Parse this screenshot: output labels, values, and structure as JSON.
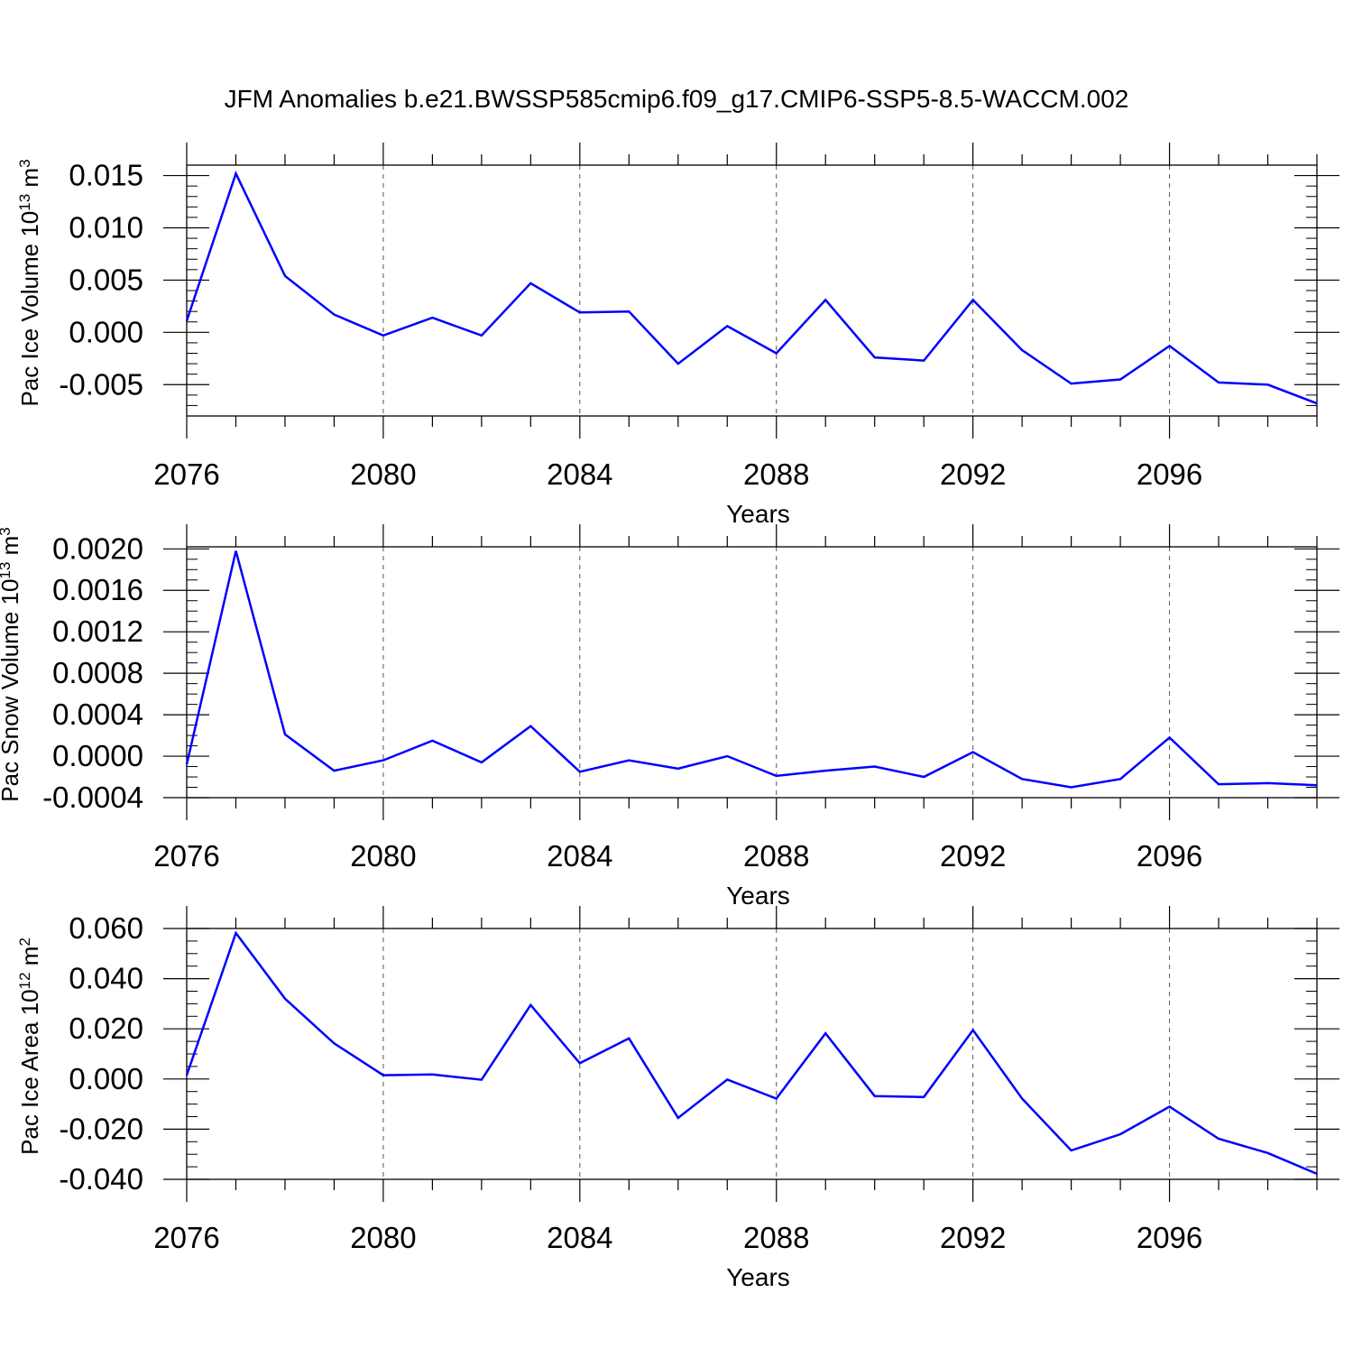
{
  "title": "JFM Anomalies b.e21.BWSSP585cmip6.f09_g17.CMIP6-SSP5-8.5-WACCM.002",
  "colors": {
    "line": "#0000ff",
    "axis": "#000000",
    "grid": "#555555"
  },
  "chart_data": [
    {
      "type": "line",
      "title": "",
      "ylabel_main": "Pac Ice Volume 10",
      "ylabel_exp1": "13",
      "ylabel_unit": " m",
      "ylabel_exp2": "3",
      "xlabel": "Years",
      "xlim": [
        2076,
        2099
      ],
      "ylim": [
        -0.008,
        0.016
      ],
      "yticks": [
        -0.005,
        0.0,
        0.005,
        0.01,
        0.015
      ],
      "ytick_labels": [
        "-0.005",
        "0.000",
        "0.005",
        "0.010",
        "0.015"
      ],
      "yminor_step": 0.001,
      "xticks": [
        2076,
        2080,
        2084,
        2088,
        2092,
        2096
      ],
      "xtick_labels": [
        "2076",
        "2080",
        "2084",
        "2088",
        "2092",
        "2096"
      ],
      "grid": "vertical dashed at major x ticks",
      "x": [
        2076,
        2077,
        2078,
        2079,
        2080,
        2081,
        2082,
        2083,
        2084,
        2085,
        2086,
        2087,
        2088,
        2089,
        2090,
        2091,
        2092,
        2093,
        2094,
        2095,
        2096,
        2097,
        2098,
        2099
      ],
      "series": [
        {
          "values": [
            0.0011,
            0.0152,
            0.0054,
            0.0017,
            -0.0003,
            0.0014,
            -0.0003,
            0.0047,
            0.0019,
            0.002,
            -0.003,
            0.0006,
            -0.002,
            0.0031,
            -0.0024,
            -0.0027,
            0.0031,
            -0.0017,
            -0.0049,
            -0.0045,
            -0.0013,
            -0.0048,
            -0.005,
            -0.0068
          ]
        }
      ]
    },
    {
      "type": "line",
      "title": "",
      "ylabel_main": "Pac Snow Volume 10",
      "ylabel_exp1": "13",
      "ylabel_unit": " m",
      "ylabel_exp2": "3",
      "xlabel": "Years",
      "xlim": [
        2076,
        2099
      ],
      "ylim": [
        -0.0004,
        0.00202
      ],
      "yticks": [
        -0.0004,
        0.0,
        0.0004,
        0.0008,
        0.0012,
        0.0016,
        0.002
      ],
      "ytick_labels": [
        "-0.0004",
        "0.0000",
        "0.0004",
        "0.0008",
        "0.0012",
        "0.0016",
        "0.0020"
      ],
      "yminor_step": 0.0001,
      "xticks": [
        2076,
        2080,
        2084,
        2088,
        2092,
        2096
      ],
      "xtick_labels": [
        "2076",
        "2080",
        "2084",
        "2088",
        "2092",
        "2096"
      ],
      "grid": "vertical dashed at major x ticks",
      "x": [
        2076,
        2077,
        2078,
        2079,
        2080,
        2081,
        2082,
        2083,
        2084,
        2085,
        2086,
        2087,
        2088,
        2089,
        2090,
        2091,
        2092,
        2093,
        2094,
        2095,
        2096,
        2097,
        2098,
        2099
      ],
      "series": [
        {
          "values": [
            -8e-05,
            0.00198,
            0.00021,
            -0.00014,
            -4e-05,
            0.00015,
            -6e-05,
            0.00029,
            -0.00015,
            -4e-05,
            -0.00012,
            0.0,
            -0.00019,
            -0.00014,
            -0.0001,
            -0.0002,
            4e-05,
            -0.00022,
            -0.0003,
            -0.00022,
            0.00018,
            -0.00027,
            -0.00026,
            -0.00028
          ]
        }
      ]
    },
    {
      "type": "line",
      "title": "",
      "ylabel_main": "Pac Ice Area 10",
      "ylabel_exp1": "12",
      "ylabel_unit": " m",
      "ylabel_exp2": "2",
      "xlabel": "Years",
      "xlim": [
        2076,
        2099
      ],
      "ylim": [
        -0.04,
        0.06
      ],
      "yticks": [
        -0.04,
        -0.02,
        0.0,
        0.02,
        0.04,
        0.06
      ],
      "ytick_labels": [
        "-0.040",
        "-0.020",
        "0.000",
        "0.020",
        "0.040",
        "0.060"
      ],
      "yminor_step": 0.005,
      "xticks": [
        2076,
        2080,
        2084,
        2088,
        2092,
        2096
      ],
      "xtick_labels": [
        "2076",
        "2080",
        "2084",
        "2088",
        "2092",
        "2096"
      ],
      "grid": "vertical dashed at major x ticks",
      "x": [
        2076,
        2077,
        2078,
        2079,
        2080,
        2081,
        2082,
        2083,
        2084,
        2085,
        2086,
        2087,
        2088,
        2089,
        2090,
        2091,
        2092,
        2093,
        2094,
        2095,
        2096,
        2097,
        2098,
        2099
      ],
      "series": [
        {
          "values": [
            0.0015,
            0.0582,
            0.032,
            0.0142,
            0.0015,
            0.0018,
            -0.0003,
            0.0295,
            0.0063,
            0.0162,
            -0.0155,
            -0.0002,
            -0.0078,
            0.0182,
            -0.0068,
            -0.0072,
            0.0195,
            -0.0078,
            -0.0285,
            -0.022,
            -0.011,
            -0.0238,
            -0.0295,
            -0.0378
          ]
        }
      ]
    }
  ]
}
